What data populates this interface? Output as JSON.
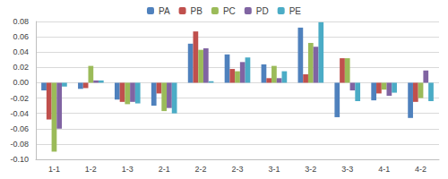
{
  "chart_data": {
    "type": "bar",
    "categories": [
      "1-1",
      "1-2",
      "1-3",
      "2-1",
      "2-2",
      "2-3",
      "3-1",
      "3-2",
      "3-3",
      "4-1",
      "4-2"
    ],
    "series": [
      {
        "name": "PA",
        "color": "#4F81BD",
        "values": [
          -0.01,
          -0.008,
          -0.022,
          -0.03,
          0.051,
          0.037,
          0.024,
          0.072,
          -0.045,
          -0.023,
          -0.046
        ]
      },
      {
        "name": "PB",
        "color": "#C0504D",
        "values": [
          -0.048,
          -0.007,
          -0.025,
          -0.014,
          0.067,
          0.018,
          0.006,
          0.011,
          0.032,
          -0.014,
          -0.025
        ]
      },
      {
        "name": "PC",
        "color": "#9BBB59",
        "values": [
          -0.09,
          0.022,
          -0.028,
          -0.037,
          0.043,
          0.015,
          0.022,
          0.052,
          0.032,
          -0.009,
          -0.02
        ]
      },
      {
        "name": "PD",
        "color": "#8064A2",
        "values": [
          -0.06,
          0.003,
          -0.025,
          -0.033,
          0.045,
          0.027,
          0.006,
          0.047,
          -0.01,
          -0.017,
          0.016
        ]
      },
      {
        "name": "PE",
        "color": "#4BACC6",
        "values": [
          -0.005,
          0.003,
          -0.027,
          -0.04,
          0.002,
          0.033,
          0.015,
          0.079,
          -0.024,
          -0.013,
          -0.024
        ]
      }
    ],
    "ylim": [
      -0.1,
      0.08
    ],
    "yticks": [
      {
        "value": -0.1,
        "label": "-0.10"
      },
      {
        "value": -0.08,
        "label": "-0.08"
      },
      {
        "value": -0.06,
        "label": "-0.06"
      },
      {
        "value": -0.04,
        "label": "-0.04"
      },
      {
        "value": -0.02,
        "label": "-0.02"
      },
      {
        "value": 0,
        "label": "0.00"
      },
      {
        "value": 0.02,
        "label": "0.02"
      },
      {
        "value": 0.04,
        "label": "0.04"
      },
      {
        "value": 0.06,
        "label": "0.06"
      },
      {
        "value": 0.08,
        "label": "0.08"
      }
    ],
    "grid": true,
    "legend": "top"
  }
}
